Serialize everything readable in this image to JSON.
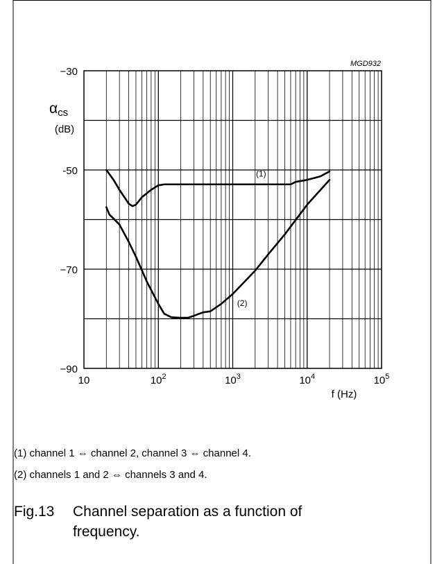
{
  "chart_data": {
    "type": "line",
    "id_label": "MGD932",
    "xlabel": "f (Hz)",
    "ylabel_symbol": "α",
    "ylabel_sub": "cs",
    "ylabel_unit": "(dB)",
    "x_scale": "log",
    "xlim": [
      10,
      100000
    ],
    "ylim": [
      -90,
      -30
    ],
    "x_ticks": [
      {
        "value": 10,
        "base": "10",
        "exp": ""
      },
      {
        "value": 100,
        "base": "10",
        "exp": "2"
      },
      {
        "value": 1000,
        "base": "10",
        "exp": "3"
      },
      {
        "value": 10000,
        "base": "10",
        "exp": "4"
      },
      {
        "value": 100000,
        "base": "10",
        "exp": "5"
      }
    ],
    "y_ticks": [
      {
        "value": -30,
        "label": "−30"
      },
      {
        "value": -50,
        "label": "-50"
      },
      {
        "value": -70,
        "label": "−70"
      },
      {
        "value": -90,
        "label": "−90"
      }
    ],
    "grid": true,
    "series": [
      {
        "name": "(1)",
        "x": [
          20,
          25,
          30,
          35,
          40,
          45,
          50,
          60,
          80,
          100,
          120,
          150,
          200,
          300,
          500,
          1000,
          2000,
          5000,
          6000,
          7000,
          10000,
          15000,
          20000
        ],
        "y": [
          -50,
          -52,
          -54,
          -55.5,
          -56.8,
          -57.3,
          -57,
          -55.5,
          -54,
          -53.1,
          -52.9,
          -52.9,
          -52.9,
          -52.9,
          -52.9,
          -52.9,
          -52.9,
          -52.9,
          -52.9,
          -52.4,
          -52,
          -51.3,
          -50.3
        ]
      },
      {
        "name": "(2)",
        "x": [
          20,
          22,
          25,
          30,
          40,
          50,
          70,
          100,
          120,
          150,
          200,
          250,
          300,
          400,
          500,
          700,
          1000,
          2000,
          3000,
          5000,
          10000,
          20000
        ],
        "y": [
          -57.5,
          -59,
          -59.8,
          -61,
          -64.5,
          -67.5,
          -72.5,
          -77,
          -79,
          -79.7,
          -79.8,
          -79.8,
          -79.4,
          -78.7,
          -78.5,
          -77,
          -75,
          -70.3,
          -67,
          -63,
          -57,
          -52
        ]
      }
    ]
  },
  "legend_notes": [
    "(1)   channel 1 ⇔ channel 2, channel 3 ⇔ channel 4.",
    "(2)   channels 1 and 2 ⇔ channels 3 and 4."
  ],
  "caption": {
    "number": "Fig.13",
    "line1": "Channel separation as a function of",
    "line2": "frequency."
  }
}
